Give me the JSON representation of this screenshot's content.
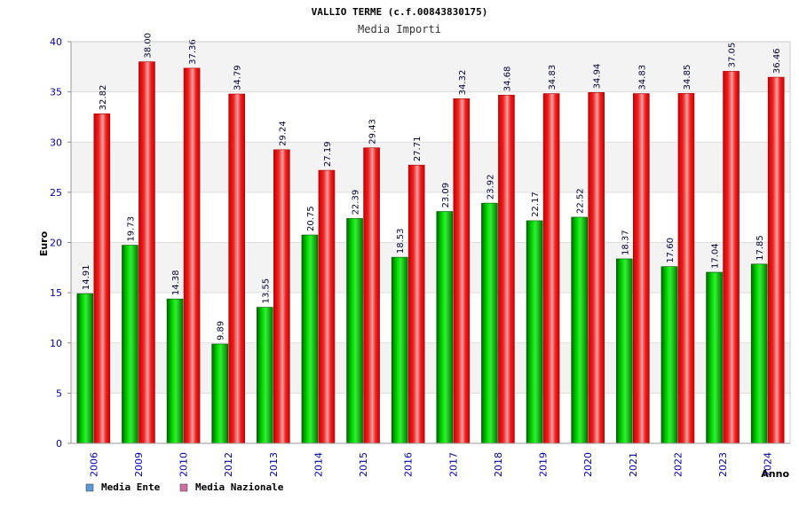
{
  "chart_data": {
    "type": "bar",
    "title": "VALLIO TERME (c.f.00843830175)",
    "subtitle": "Media Importi",
    "xlabel": "Anno",
    "ylabel": "Euro",
    "ylim": [
      0,
      40
    ],
    "yticks": [
      0,
      5,
      10,
      15,
      20,
      25,
      30,
      35,
      40
    ],
    "grid": true,
    "legend_position": "bottom-left",
    "categories": [
      "2006",
      "2009",
      "2010",
      "2012",
      "2013",
      "2014",
      "2015",
      "2016",
      "2017",
      "2018",
      "2019",
      "2020",
      "2021",
      "2022",
      "2023",
      "2024"
    ],
    "series": [
      {
        "name": "Media Ente",
        "color": "#00aa00",
        "legend_color": "#5b9bd5",
        "values": [
          14.91,
          19.73,
          14.38,
          9.89,
          13.55,
          20.75,
          22.39,
          18.53,
          23.09,
          23.92,
          22.17,
          22.52,
          18.37,
          17.6,
          17.04,
          17.85
        ],
        "labels": [
          "14.91",
          "19.73",
          "14.38",
          "9.89",
          "13.55",
          "20.75",
          "22.39",
          "18.53",
          "23.09",
          "23.92",
          "22.17",
          "22.52",
          "18.37",
          "17.60",
          "17.04",
          "17.85"
        ]
      },
      {
        "name": "Media Nazionale",
        "color": "#dd0000",
        "legend_color": "#d36ea5",
        "values": [
          32.82,
          38.0,
          37.36,
          34.79,
          29.24,
          27.19,
          29.43,
          27.71,
          34.32,
          34.68,
          34.83,
          34.94,
          34.83,
          34.85,
          37.05,
          36.46
        ],
        "labels": [
          "32.82",
          "38.00",
          "37.36",
          "34.79",
          "29.24",
          "27.19",
          "29.43",
          "27.71",
          "34.32",
          "34.68",
          "34.83",
          "34.94",
          "34.83",
          "34.85",
          "37.05",
          "36.46"
        ]
      }
    ]
  }
}
